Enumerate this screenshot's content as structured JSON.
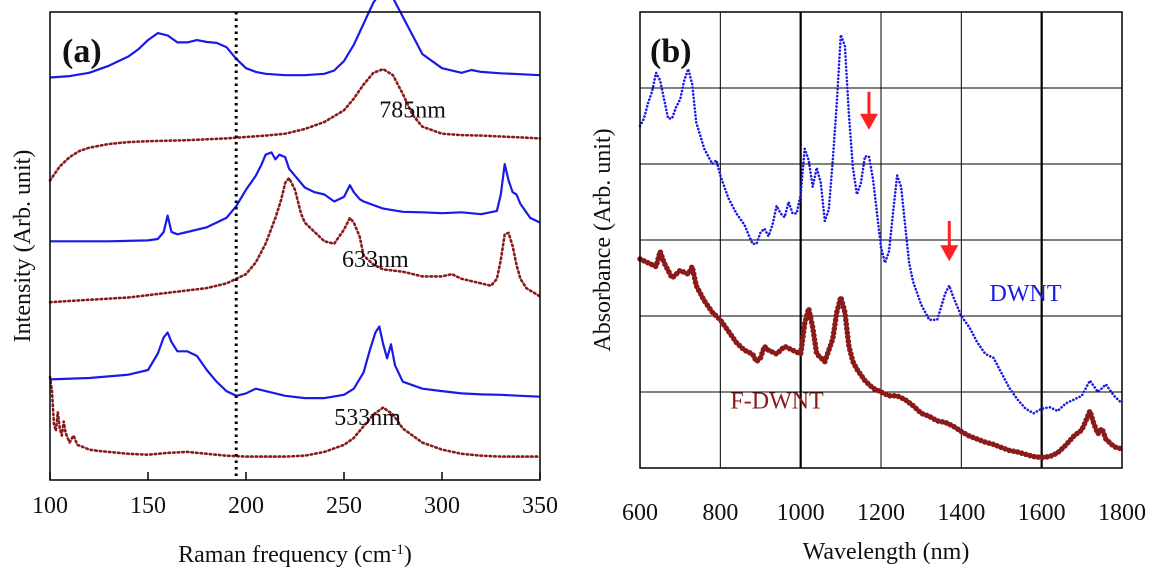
{
  "chart_data": [
    {
      "panel": "(a)",
      "type": "line",
      "xlabel": "Raman frequency (cm",
      "xlabel_sup": "-1",
      "xlabel_end": ")",
      "ylabel": "Intensity (Arb. unit)",
      "xlim": [
        100,
        350
      ],
      "ylim": [
        0,
        100
      ],
      "xticks": [
        100,
        150,
        200,
        250,
        300,
        350
      ],
      "grid": false,
      "yticks_shown": false,
      "vertical_reference_line": {
        "x": 195,
        "style": "dotted",
        "color": "#000000"
      },
      "series_style": {
        "solid": {
          "color": "#1a1ae6",
          "dash": "none"
        },
        "dotted": {
          "color": "#8b1a1a",
          "dash": "dotted"
        }
      },
      "groups": [
        {
          "label": "785nm",
          "label_at": [
            268,
            77.5
          ],
          "solid": {
            "x": [
              100,
              110,
              120,
              130,
              140,
              145,
              150,
              155,
              160,
              165,
              170,
              175,
              180,
              185,
              190,
              195,
              200,
              205,
              210,
              220,
              230,
              240,
              245,
              250,
              255,
              260,
              265,
              268,
              270,
              275,
              280,
              285,
              290,
              300,
              310,
              315,
              320,
              330,
              340,
              350
            ],
            "y": [
              86,
              86.3,
              87,
              88.5,
              90.5,
              92,
              94,
              95.5,
              95,
              93.5,
              93.5,
              94,
              93.6,
              93.4,
              92.5,
              90,
              88,
              87.2,
              86.8,
              86.5,
              86.5,
              86.8,
              87.5,
              89.5,
              93,
              97.5,
              102,
              103.8,
              104.2,
              103,
              99,
              95,
              91,
              88,
              87,
              87.6,
              87.2,
              86.9,
              86.7,
              86.5
            ]
          },
          "dotted": {
            "x": [
              100,
              105,
              110,
              115,
              120,
              130,
              140,
              150,
              160,
              170,
              180,
              190,
              200,
              210,
              220,
              230,
              240,
              250,
              255,
              260,
              265,
              270,
              275,
              280,
              285,
              290,
              300,
              310,
              320,
              330,
              340,
              350
            ],
            "y": [
              64,
              67,
              69,
              70.3,
              71,
              71.8,
              72.2,
              72.4,
              72.5,
              72.6,
              72.8,
              73,
              73.3,
              73.6,
              74,
              75,
              76.5,
              79,
              81.5,
              84.5,
              87,
              87.8,
              86.5,
              82.5,
              78,
              75.5,
              74,
              73.7,
              73.6,
              73.4,
              73.2,
              73
            ]
          }
        },
        {
          "label": "633nm",
          "label_at": [
            249,
            45.5
          ],
          "solid": {
            "x": [
              100,
              130,
              150,
              155,
              158,
              160,
              162,
              165,
              170,
              180,
              190,
              195,
              200,
              205,
              208,
              210,
              213,
              215,
              217,
              220,
              222,
              225,
              230,
              235,
              240,
              245,
              250,
              253,
              255,
              258,
              260,
              270,
              280,
              290,
              300,
              310,
              320,
              328,
              330,
              332,
              334,
              336,
              338,
              340,
              345,
              350
            ],
            "y": [
              51,
              51,
              51.2,
              51.5,
              53,
              56.5,
              53,
              52.5,
              53,
              54,
              56,
              58.5,
              62,
              65,
              67.5,
              69.5,
              70,
              68.5,
              69.5,
              69,
              66.5,
              65,
              62.5,
              61.5,
              61,
              59.5,
              60.5,
              63,
              61.5,
              60,
              59.5,
              58,
              57.3,
              57.2,
              57,
              57.2,
              56.8,
              57.5,
              61,
              67.5,
              64,
              61.5,
              61,
              59,
              56,
              55
            ]
          },
          "dotted": {
            "x": [
              100,
              120,
              140,
              160,
              180,
              190,
              195,
              200,
              205,
              210,
              215,
              218,
              220,
              222,
              225,
              228,
              230,
              235,
              240,
              245,
              250,
              253,
              255,
              258,
              260,
              265,
              270,
              280,
              290,
              300,
              305,
              310,
              320,
              325,
              328,
              330,
              332,
              334,
              336,
              338,
              340,
              343,
              347,
              350
            ],
            "y": [
              38,
              38.5,
              39,
              40,
              41,
              42,
              43,
              44,
              46.5,
              50.5,
              56,
              60,
              63.5,
              64.5,
              62,
              57,
              55,
              53,
              51,
              50.5,
              53.5,
              56,
              55,
              52,
              48,
              46,
              45,
              44.5,
              43.5,
              43.5,
              44,
              43,
              42,
              41.5,
              43,
              47,
              52.5,
              52.8,
              50,
              46,
              43,
              41,
              40,
              39.2
            ]
          }
        },
        {
          "label": "533nm",
          "label_at": [
            245,
            11.8
          ],
          "solid": {
            "x": [
              100,
              120,
              140,
              150,
              155,
              158,
              160,
              162,
              165,
              170,
              175,
              180,
              185,
              190,
              195,
              200,
              205,
              210,
              220,
              230,
              240,
              250,
              255,
              260,
              263,
              266,
              268,
              270,
              272,
              274,
              276,
              280,
              290,
              300,
              310,
              320,
              330,
              340,
              350
            ],
            "y": [
              21.5,
              21.8,
              22.5,
              23.5,
              27,
              30.5,
              31.5,
              29.5,
              27.5,
              27.5,
              26.5,
              23.5,
              21,
              19,
              18,
              18.5,
              19.5,
              19,
              18,
              17.5,
              17.5,
              18.2,
              19.5,
              23,
              27.5,
              31.5,
              32.8,
              29,
              26,
              29,
              24.5,
              21,
              19.5,
              19,
              18.5,
              18.3,
              18.2,
              18,
              17.8
            ]
          },
          "dotted": {
            "x": [
              100,
              101,
              102,
              103,
              104,
              105,
              106,
              107,
              108,
              110,
              112,
              114,
              116,
              120,
              125,
              130,
              140,
              150,
              160,
              170,
              180,
              190,
              200,
              210,
              220,
              230,
              240,
              250,
              255,
              260,
              265,
              270,
              275,
              280,
              290,
              300,
              310,
              320,
              330,
              340,
              350
            ],
            "y": [
              22,
              19,
              12,
              10.5,
              14.5,
              11,
              9.5,
              12.5,
              10,
              8,
              9.5,
              7.5,
              7.2,
              6.5,
              6.2,
              6,
              5.6,
              5.4,
              5.8,
              6,
              5.6,
              5.2,
              5,
              5,
              5,
              5.2,
              6,
              7.5,
              9,
              11.5,
              14,
              15.5,
              14,
              11,
              8,
              6.5,
              5.6,
              5.2,
              5,
              5,
              5
            ]
          }
        }
      ]
    },
    {
      "panel": "(b)",
      "type": "line",
      "xlabel": "Wavelength (nm)",
      "ylabel": "Absorbance (Arb. unit)",
      "xlim": [
        600,
        1800
      ],
      "ylim": [
        0,
        6
      ],
      "xticks": [
        600,
        800,
        1000,
        1200,
        1400,
        1600,
        1800
      ],
      "grid": true,
      "yticks_shown": false,
      "annotations": [
        {
          "type": "arrow",
          "color": "#ff2020",
          "x": 1170,
          "y_from": 4.95,
          "y_to": 4.45
        },
        {
          "type": "arrow",
          "color": "#ff2020",
          "x": 1370,
          "y_from": 3.25,
          "y_to": 2.72
        }
      ],
      "series": [
        {
          "name": "DWNT",
          "color": "#1a1ae6",
          "marker": "dot",
          "label_at": [
            1470,
            2.2
          ],
          "x": [
            600,
            610,
            620,
            630,
            640,
            650,
            660,
            670,
            680,
            690,
            700,
            710,
            720,
            730,
            740,
            760,
            780,
            790,
            800,
            820,
            840,
            860,
            880,
            890,
            900,
            910,
            920,
            930,
            940,
            950,
            960,
            970,
            980,
            990,
            1000,
            1010,
            1020,
            1030,
            1040,
            1050,
            1060,
            1070,
            1080,
            1090,
            1100,
            1110,
            1120,
            1130,
            1140,
            1150,
            1160,
            1170,
            1180,
            1190,
            1200,
            1210,
            1220,
            1230,
            1240,
            1250,
            1260,
            1270,
            1280,
            1300,
            1320,
            1340,
            1360,
            1370,
            1380,
            1400,
            1420,
            1440,
            1460,
            1480,
            1500,
            1520,
            1540,
            1560,
            1580,
            1600,
            1620,
            1640,
            1660,
            1680,
            1700,
            1720,
            1740,
            1760,
            1780,
            1800
          ],
          "y": [
            4.5,
            4.6,
            4.8,
            4.95,
            5.2,
            5.1,
            4.85,
            4.6,
            4.6,
            4.75,
            4.85,
            5.1,
            5.25,
            5.05,
            4.55,
            4.2,
            4,
            4.05,
            3.85,
            3.55,
            3.35,
            3.2,
            2.95,
            2.95,
            3.1,
            3.15,
            3.05,
            3.2,
            3.45,
            3.35,
            3.3,
            3.5,
            3.35,
            3.35,
            3.6,
            4.2,
            4.05,
            3.7,
            3.95,
            3.75,
            3.25,
            3.4,
            4.05,
            4.8,
            5.7,
            5.55,
            4.65,
            3.95,
            3.6,
            3.75,
            4.1,
            4.1,
            3.8,
            3.35,
            2.9,
            2.7,
            2.85,
            3.35,
            3.85,
            3.7,
            3.2,
            2.7,
            2.45,
            2.15,
            1.95,
            1.95,
            2.3,
            2.4,
            2.25,
            2,
            1.85,
            1.65,
            1.5,
            1.45,
            1.25,
            1.05,
            0.9,
            0.78,
            0.72,
            0.78,
            0.8,
            0.75,
            0.85,
            0.9,
            0.95,
            1.15,
            1.0,
            1.1,
            0.95,
            0.85
          ]
        },
        {
          "name": "F-DWNT",
          "color": "#8b1a1a",
          "marker": "dot",
          "label_at": [
            825,
            0.78
          ],
          "x": [
            600,
            620,
            640,
            650,
            660,
            680,
            700,
            720,
            730,
            740,
            760,
            780,
            800,
            820,
            840,
            860,
            880,
            890,
            900,
            910,
            920,
            940,
            960,
            980,
            1000,
            1010,
            1020,
            1030,
            1040,
            1060,
            1080,
            1090,
            1100,
            1110,
            1120,
            1130,
            1140,
            1160,
            1180,
            1200,
            1220,
            1240,
            1260,
            1280,
            1300,
            1320,
            1340,
            1360,
            1380,
            1400,
            1420,
            1440,
            1460,
            1480,
            1500,
            1520,
            1540,
            1560,
            1580,
            1600,
            1620,
            1640,
            1660,
            1680,
            1700,
            1710,
            1720,
            1730,
            1740,
            1750,
            1760,
            1780,
            1800
          ],
          "y": [
            2.75,
            2.7,
            2.65,
            2.85,
            2.7,
            2.5,
            2.6,
            2.55,
            2.65,
            2.4,
            2.2,
            2.05,
            1.95,
            1.8,
            1.65,
            1.55,
            1.5,
            1.4,
            1.45,
            1.6,
            1.55,
            1.5,
            1.6,
            1.55,
            1.5,
            1.9,
            2.1,
            1.85,
            1.5,
            1.4,
            1.7,
            2.05,
            2.25,
            2.05,
            1.6,
            1.4,
            1.3,
            1.15,
            1.05,
            1.0,
            0.95,
            0.95,
            0.9,
            0.82,
            0.72,
            0.68,
            0.62,
            0.6,
            0.55,
            0.48,
            0.42,
            0.38,
            0.34,
            0.31,
            0.27,
            0.23,
            0.21,
            0.18,
            0.15,
            0.14,
            0.15,
            0.2,
            0.3,
            0.42,
            0.5,
            0.62,
            0.75,
            0.58,
            0.45,
            0.52,
            0.38,
            0.28,
            0.25
          ]
        }
      ]
    }
  ]
}
